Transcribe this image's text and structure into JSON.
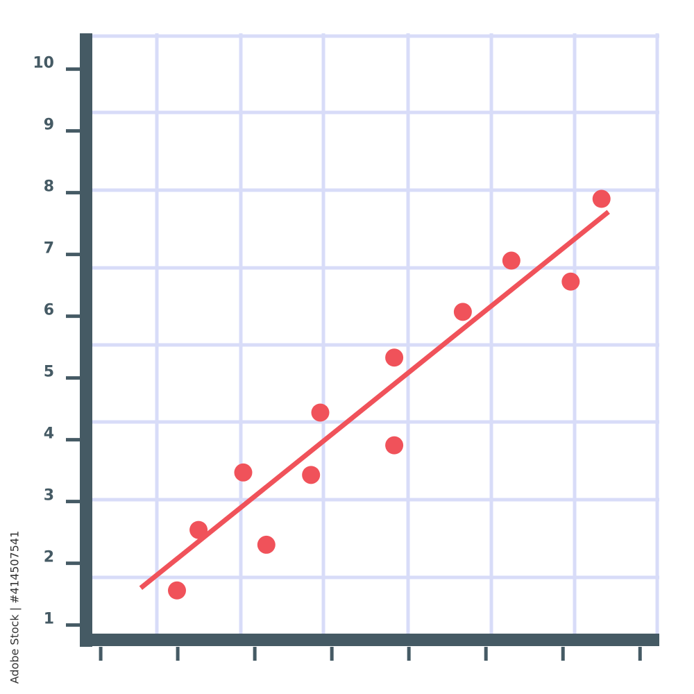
{
  "chart_data": {
    "type": "scatter",
    "x": [
      0.99,
      1.27,
      1.85,
      2.15,
      2.73,
      2.85,
      3.81,
      3.81,
      4.7,
      5.33,
      6.1,
      6.5
    ],
    "values": [
      1.47,
      2.45,
      3.38,
      2.21,
      3.34,
      4.35,
      5.24,
      3.82,
      5.98,
      6.81,
      6.47,
      7.81
    ],
    "color": "#f0525a",
    "trend_line": {
      "x": [
        0.52,
        6.59
      ],
      "values": [
        1.51,
        7.6
      ],
      "color": "#f0525a"
    },
    "xlim": [
      -0.19,
      7.25
    ],
    "xticks": [
      0,
      1,
      2,
      3,
      4,
      5,
      6,
      7
    ],
    "ylim": [
      0.67,
      10.49
    ],
    "yticks": [
      1,
      2,
      3,
      4,
      5,
      6,
      7,
      8,
      9,
      10
    ],
    "axis_color": "#455a64",
    "grid_color": "#d8dcf8",
    "credit": "Adobe Stock | #414507541"
  }
}
